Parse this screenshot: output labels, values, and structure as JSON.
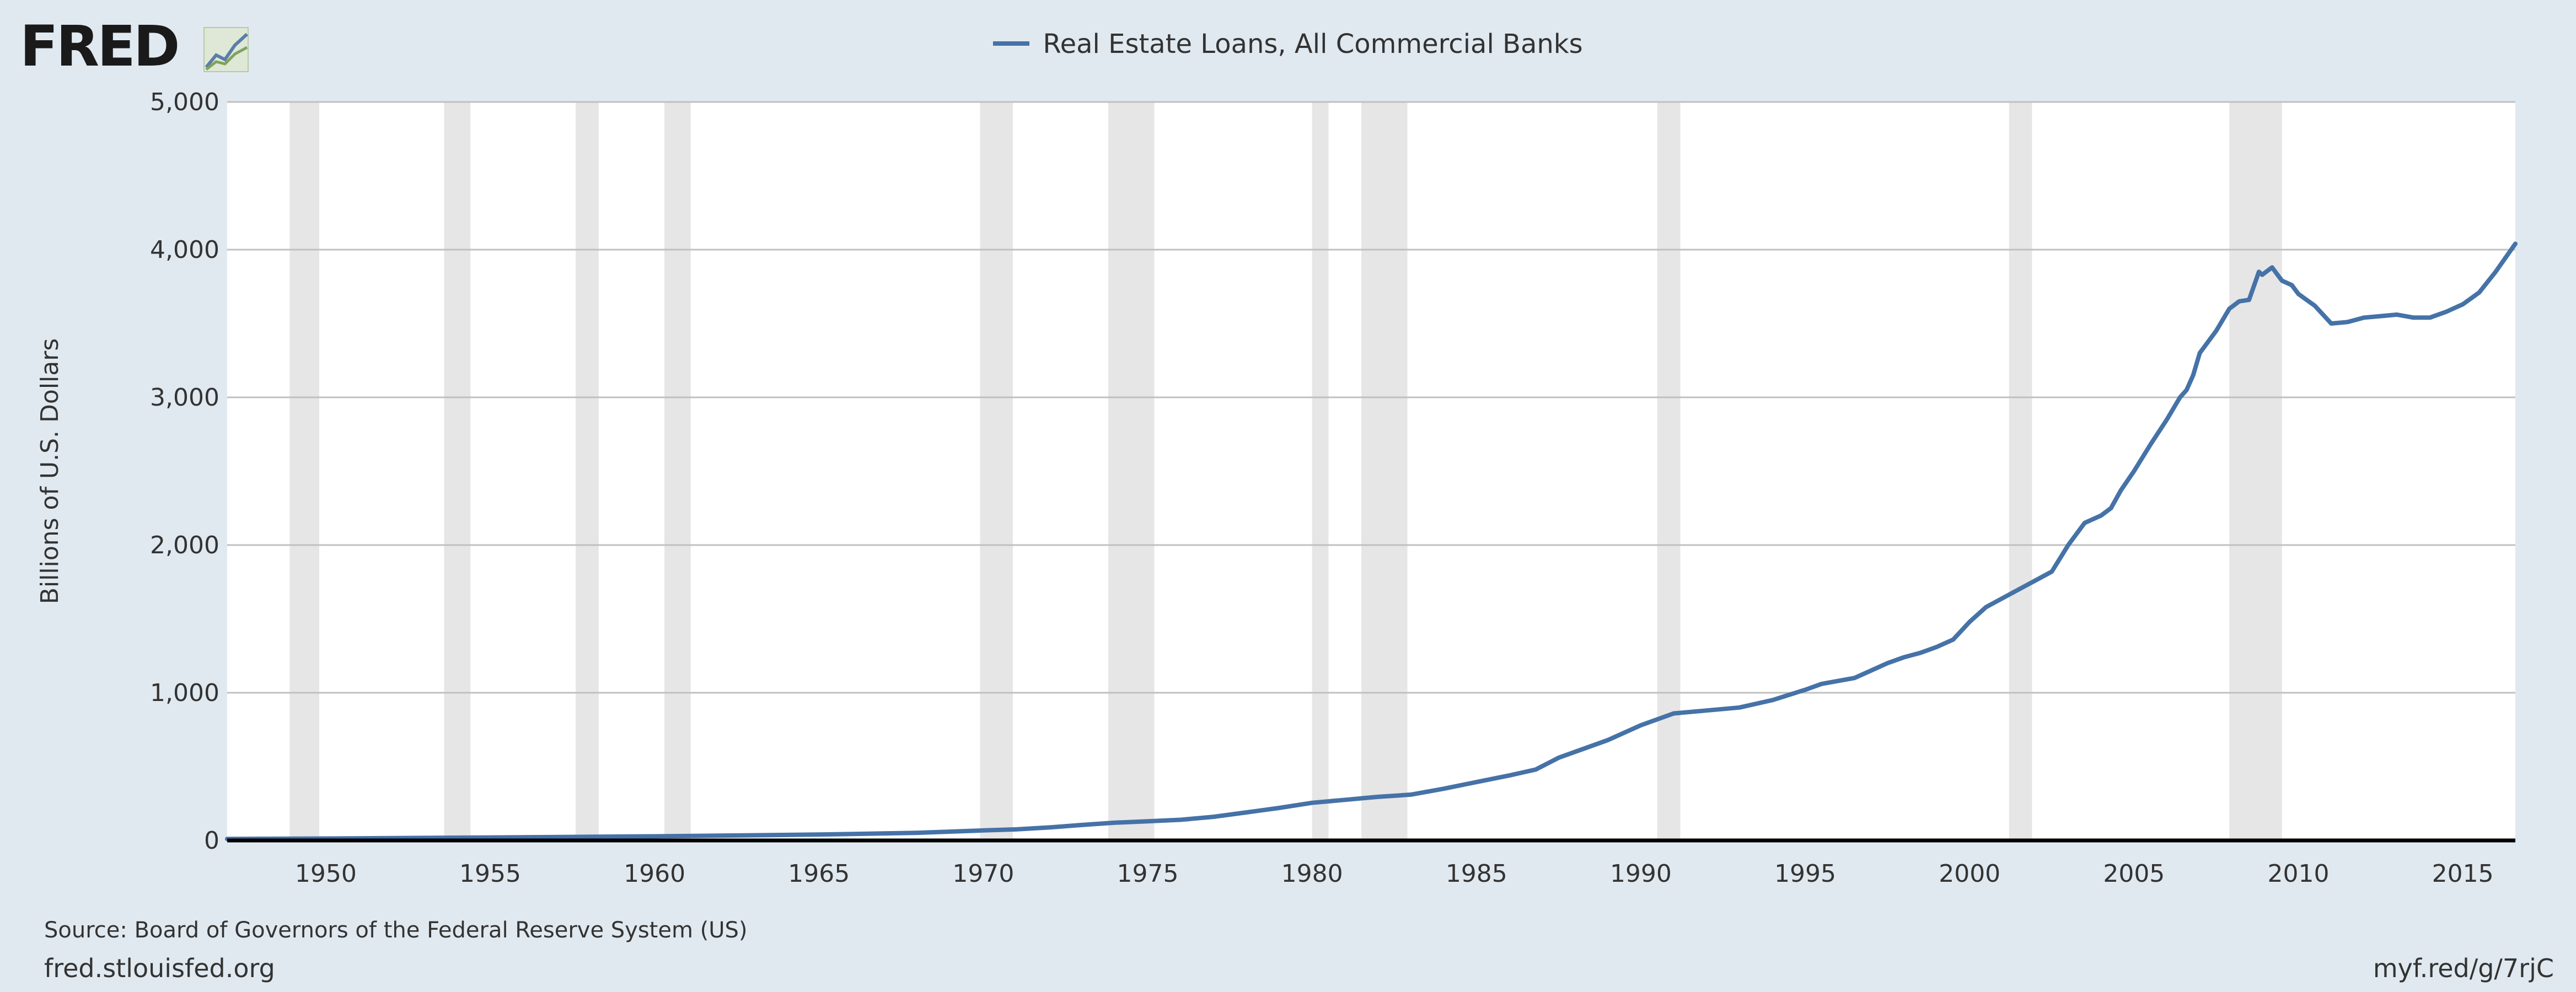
{
  "logo": {
    "text": "FRED"
  },
  "legend": {
    "label": "Real Estate Loans, All Commercial Banks",
    "color": "#4572a7"
  },
  "footer": {
    "source": "Source: Board of Governors of the Federal Reserve System (US)",
    "site": "fred.stlouisfed.org",
    "link": "myf.red/g/7rjC"
  },
  "chart_data": {
    "type": "line",
    "title": "",
    "xlabel": "",
    "ylabel": "Billions of U.S. Dollars",
    "xlim": [
      1947.0,
      2016.6
    ],
    "ylim": [
      0,
      5000
    ],
    "grid": true,
    "legend_position": "top-center",
    "x_ticks": [
      1950,
      1955,
      1960,
      1965,
      1970,
      1975,
      1980,
      1985,
      1990,
      1995,
      2000,
      2005,
      2010,
      2015
    ],
    "x_tick_labels": [
      "1950",
      "1955",
      "1960",
      "1965",
      "1970",
      "1975",
      "1980",
      "1985",
      "1990",
      "1995",
      "2000",
      "2005",
      "2010",
      "2015"
    ],
    "y_ticks": [
      0,
      1000,
      2000,
      3000,
      4000,
      5000
    ],
    "y_tick_labels": [
      "0",
      "1,000",
      "2,000",
      "3,000",
      "4,000",
      "5,000"
    ],
    "recessions": [
      [
        1948.9,
        1949.8
      ],
      [
        1953.6,
        1954.4
      ],
      [
        1957.6,
        1958.3
      ],
      [
        1960.3,
        1961.1
      ],
      [
        1969.9,
        1970.9
      ],
      [
        1973.8,
        1975.2
      ],
      [
        1980.0,
        1980.5
      ],
      [
        1981.5,
        1982.9
      ],
      [
        1990.5,
        1991.2
      ],
      [
        2001.2,
        2001.9
      ],
      [
        2007.9,
        2009.5
      ]
    ],
    "recession_color": "#e6e6e6",
    "series": [
      {
        "name": "Real Estate Loans, All Commercial Banks",
        "color": "#4572a7",
        "x": [
          1947,
          1950,
          1955,
          1960,
          1965,
          1968,
          1970,
          1971,
          1972,
          1973,
          1974,
          1975,
          1976,
          1977,
          1978,
          1979,
          1980,
          1981,
          1982,
          1983,
          1984,
          1985,
          1986,
          1986.8,
          1987.5,
          1988,
          1989,
          1990,
          1991,
          1992,
          1993,
          1994,
          1995,
          1995.5,
          1996,
          1996.5,
          1997,
          1997.5,
          1998,
          1998.5,
          1999,
          1999.5,
          2000,
          2000.5,
          2001,
          2001.5,
          2002,
          2002.5,
          2003,
          2003.5,
          2004,
          2004.3,
          2004.6,
          2005,
          2005.5,
          2006,
          2006.4,
          2006.6,
          2006.8,
          2007,
          2007.5,
          2007.9,
          2008.2,
          2008.5,
          2008.8,
          2008.9,
          2009.2,
          2009.5,
          2009.8,
          2010,
          2010.5,
          2011,
          2011.5,
          2012,
          2012.5,
          2013,
          2013.5,
          2014,
          2014.5,
          2015,
          2015.5,
          2016,
          2016.6
        ],
        "y": [
          10,
          13,
          20,
          28,
          40,
          52,
          68,
          75,
          88,
          105,
          120,
          130,
          140,
          160,
          190,
          220,
          255,
          275,
          295,
          310,
          350,
          395,
          440,
          480,
          560,
          600,
          680,
          780,
          860,
          880,
          900,
          950,
          1020,
          1060,
          1080,
          1100,
          1150,
          1200,
          1240,
          1270,
          1310,
          1360,
          1480,
          1580,
          1640,
          1700,
          1760,
          1820,
          2000,
          2150,
          2200,
          2250,
          2370,
          2500,
          2680,
          2850,
          3000,
          3050,
          3150,
          3300,
          3450,
          3600,
          3650,
          3660,
          3850,
          3830,
          3880,
          3790,
          3760,
          3700,
          3620,
          3500,
          3510,
          3540,
          3550,
          3560,
          3540,
          3540,
          3580,
          3630,
          3710,
          3850,
          4040
        ]
      }
    ]
  }
}
